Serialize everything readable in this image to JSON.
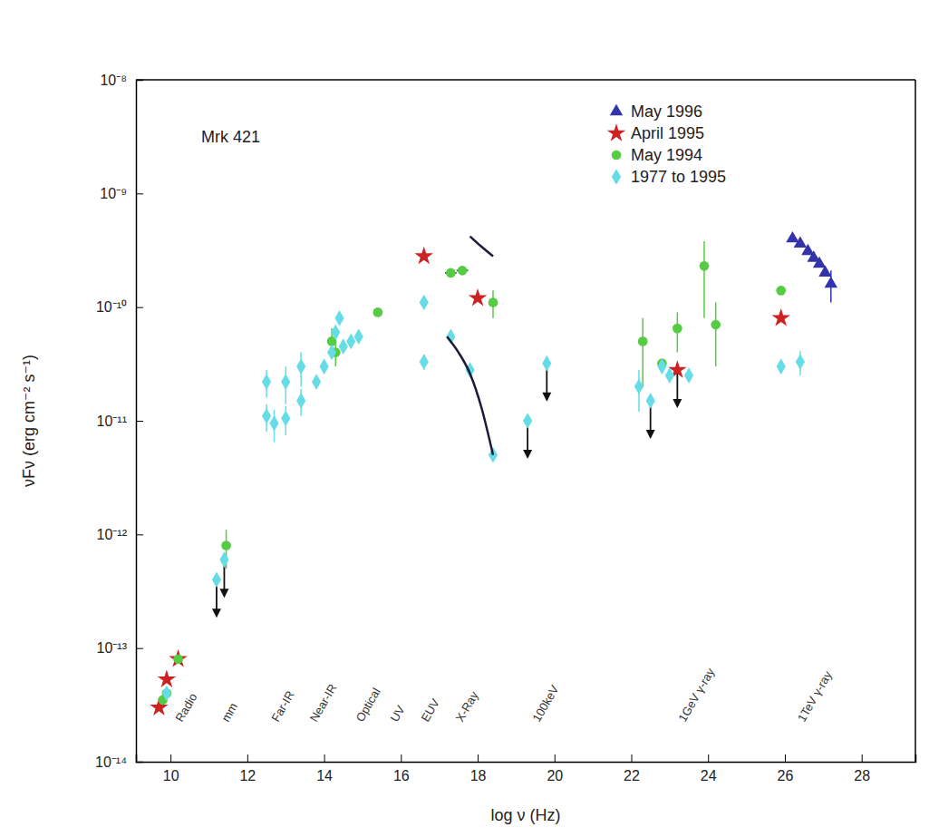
{
  "chart_data": {
    "type": "scatter",
    "x_label": "log ν (Hz)",
    "y_label": "νFν (erg cm⁻² s⁻¹)",
    "log": "y",
    "legend": "top-right",
    "grid": false,
    "xlim": [
      9.1,
      29.4
    ],
    "xticks": [
      10,
      12,
      14,
      16,
      18,
      20,
      22,
      24,
      26,
      28
    ],
    "ylim": [
      1e-14,
      1e-08
    ],
    "yticks": [
      {
        "value": 1e-14,
        "label": "10⁻¹⁴"
      },
      {
        "value": 1e-13,
        "label": "10⁻¹³"
      },
      {
        "value": 1e-12,
        "label": "10⁻¹²"
      },
      {
        "value": 1e-11,
        "label": "10⁻¹¹"
      },
      {
        "value": 1e-10,
        "label": "10⁻¹⁰"
      },
      {
        "value": 1e-09,
        "label": "10⁻⁹"
      },
      {
        "value": 1e-08,
        "label": "10⁻⁸"
      }
    ],
    "annotations": [
      {
        "text": "Mrk 421",
        "x": 10.8,
        "y": 2.8e-09
      }
    ],
    "band_labels": [
      {
        "text": "Radio",
        "x": 10.3,
        "y": 2.2e-14
      },
      {
        "text": "mm",
        "x": 11.5,
        "y": 2.2e-14
      },
      {
        "text": "Far-IR",
        "x": 12.8,
        "y": 2.2e-14
      },
      {
        "text": "Near-IR",
        "x": 13.8,
        "y": 2.2e-14
      },
      {
        "text": "Optical",
        "x": 15.0,
        "y": 2.2e-14
      },
      {
        "text": "UV",
        "x": 15.9,
        "y": 2.2e-14
      },
      {
        "text": "EUV",
        "x": 16.7,
        "y": 2.2e-14
      },
      {
        "text": "X-Ray",
        "x": 17.6,
        "y": 2.2e-14
      },
      {
        "text": "100keV",
        "x": 19.6,
        "y": 2.2e-14
      },
      {
        "text": "1GeV γ-ray",
        "x": 23.4,
        "y": 2.2e-14
      },
      {
        "text": "1TeV γ-ray",
        "x": 26.5,
        "y": 2.2e-14
      }
    ],
    "series": [
      {
        "name": "May 1996",
        "color": "#3333aa",
        "marker": "triangle",
        "x": [
          26.2,
          26.4,
          26.6,
          26.75,
          26.9,
          27.05,
          27.2
        ],
        "values": [
          4e-10,
          3.6e-10,
          3.1e-10,
          2.7e-10,
          2.4e-10,
          2e-10,
          1.6e-10
        ],
        "error": [
          null,
          null,
          null,
          null,
          null,
          null,
          5e-11
        ]
      },
      {
        "name": "April 1995",
        "color": "#cc2222",
        "marker": "star",
        "x": [
          9.7,
          9.9,
          10.2,
          16.6,
          18.0,
          23.2,
          25.9
        ],
        "values": [
          3e-14,
          5.3e-14,
          8e-14,
          2.8e-10,
          1.2e-10,
          2.8e-11,
          8e-11
        ],
        "upper_limit": [
          false,
          false,
          false,
          false,
          false,
          true,
          false
        ]
      },
      {
        "name": "May 1994",
        "color": "#55cc44",
        "marker": "circle",
        "x": [
          9.8,
          9.9,
          10.2,
          11.45,
          14.2,
          14.3,
          15.4,
          17.3,
          17.6,
          18.4,
          22.3,
          22.8,
          23.2,
          23.9,
          24.2,
          25.9
        ],
        "values": [
          3.5e-14,
          4e-14,
          8e-14,
          8e-13,
          5e-11,
          4e-11,
          9e-11,
          2e-10,
          2.1e-10,
          1.1e-10,
          5e-11,
          3.2e-11,
          6.5e-11,
          2.3e-10,
          7e-11,
          1.4e-10
        ],
        "error": [
          null,
          null,
          null,
          3e-13,
          1.5e-11,
          1e-11,
          null,
          null,
          null,
          3e-11,
          3e-11,
          null,
          2.5e-11,
          1.5e-10,
          4e-11,
          null
        ],
        "x_error": [
          null,
          null,
          null,
          null,
          null,
          null,
          null,
          0.15,
          0.15,
          null,
          null,
          null,
          null,
          null,
          null,
          null
        ]
      },
      {
        "name": "1977 to 1995",
        "color": "#66dde6",
        "marker": "diamond",
        "x": [
          9.9,
          11.2,
          11.4,
          12.5,
          12.5,
          12.7,
          13.0,
          13.0,
          13.4,
          13.4,
          13.8,
          14.0,
          14.2,
          14.3,
          14.4,
          14.5,
          14.7,
          14.9,
          16.6,
          16.6,
          17.3,
          17.8,
          18.4,
          19.3,
          19.8,
          22.2,
          22.5,
          22.8,
          23.0,
          23.5,
          25.9,
          26.4
        ],
        "values": [
          4e-14,
          4e-13,
          6e-13,
          2.2e-11,
          1.1e-11,
          9.5e-12,
          2.2e-11,
          1.05e-11,
          3e-11,
          1.5e-11,
          2.2e-11,
          3e-11,
          4e-11,
          6e-11,
          8e-11,
          4.5e-11,
          5e-11,
          5.5e-11,
          1.1e-10,
          3.3e-11,
          5.5e-11,
          2.8e-11,
          5e-12,
          1e-11,
          3.2e-11,
          2e-11,
          1.5e-11,
          3e-11,
          2.5e-11,
          2.5e-11,
          3e-11,
          3.3e-11
        ],
        "error": [
          null,
          null,
          null,
          6e-12,
          3e-12,
          3e-12,
          8e-12,
          3e-12,
          1e-11,
          4e-12,
          null,
          null,
          null,
          null,
          null,
          null,
          null,
          null,
          null,
          5e-12,
          null,
          null,
          null,
          null,
          null,
          8e-12,
          null,
          null,
          null,
          null,
          null,
          8e-12
        ],
        "upper_limit": [
          false,
          true,
          true,
          false,
          false,
          false,
          false,
          false,
          false,
          false,
          false,
          false,
          false,
          false,
          false,
          false,
          false,
          false,
          false,
          false,
          false,
          false,
          false,
          true,
          true,
          false,
          true,
          false,
          false,
          false,
          false,
          false
        ]
      },
      {
        "type": "line",
        "color": "#1b1b3a",
        "x": [
          17.2,
          17.5,
          17.8,
          18.1,
          18.4
        ],
        "values": [
          5.5e-11,
          4e-11,
          2.6e-11,
          1.3e-11,
          5e-12
        ]
      },
      {
        "type": "line",
        "color": "#1b1b3a",
        "x": [
          17.8,
          18.1,
          18.4
        ],
        "values": [
          4.2e-10,
          3.4e-10,
          2.8e-10
        ]
      }
    ]
  }
}
